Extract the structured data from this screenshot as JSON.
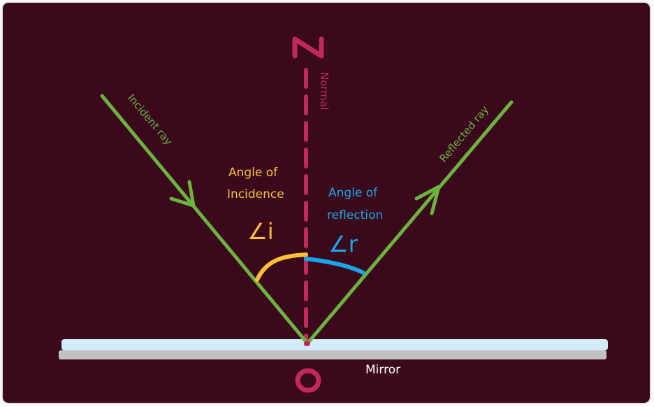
{
  "diagram": {
    "point_top": "N",
    "point_bottom": "O",
    "normal_label": "Normal",
    "incident_label": "Incident ray",
    "reflected_label": "Reflected ray",
    "incidence_label_line1": "Angle of",
    "incidence_label_line2": "Incidence",
    "incidence_symbol": "∠i",
    "reflection_label_line1": "Angle of",
    "reflection_label_line2": "reflection",
    "reflection_symbol": "∠r",
    "mirror_label": "Mirror"
  },
  "colors": {
    "background": "#3a0a1c",
    "ray": "#6cb33f",
    "normal": "#c2285e",
    "incidence": "#fbbf3c",
    "reflection": "#1aa6e8",
    "mirror_glass": "#d4ecf7",
    "mirror_back": "#c2c2c2",
    "mirror_text": "#ffffff"
  }
}
